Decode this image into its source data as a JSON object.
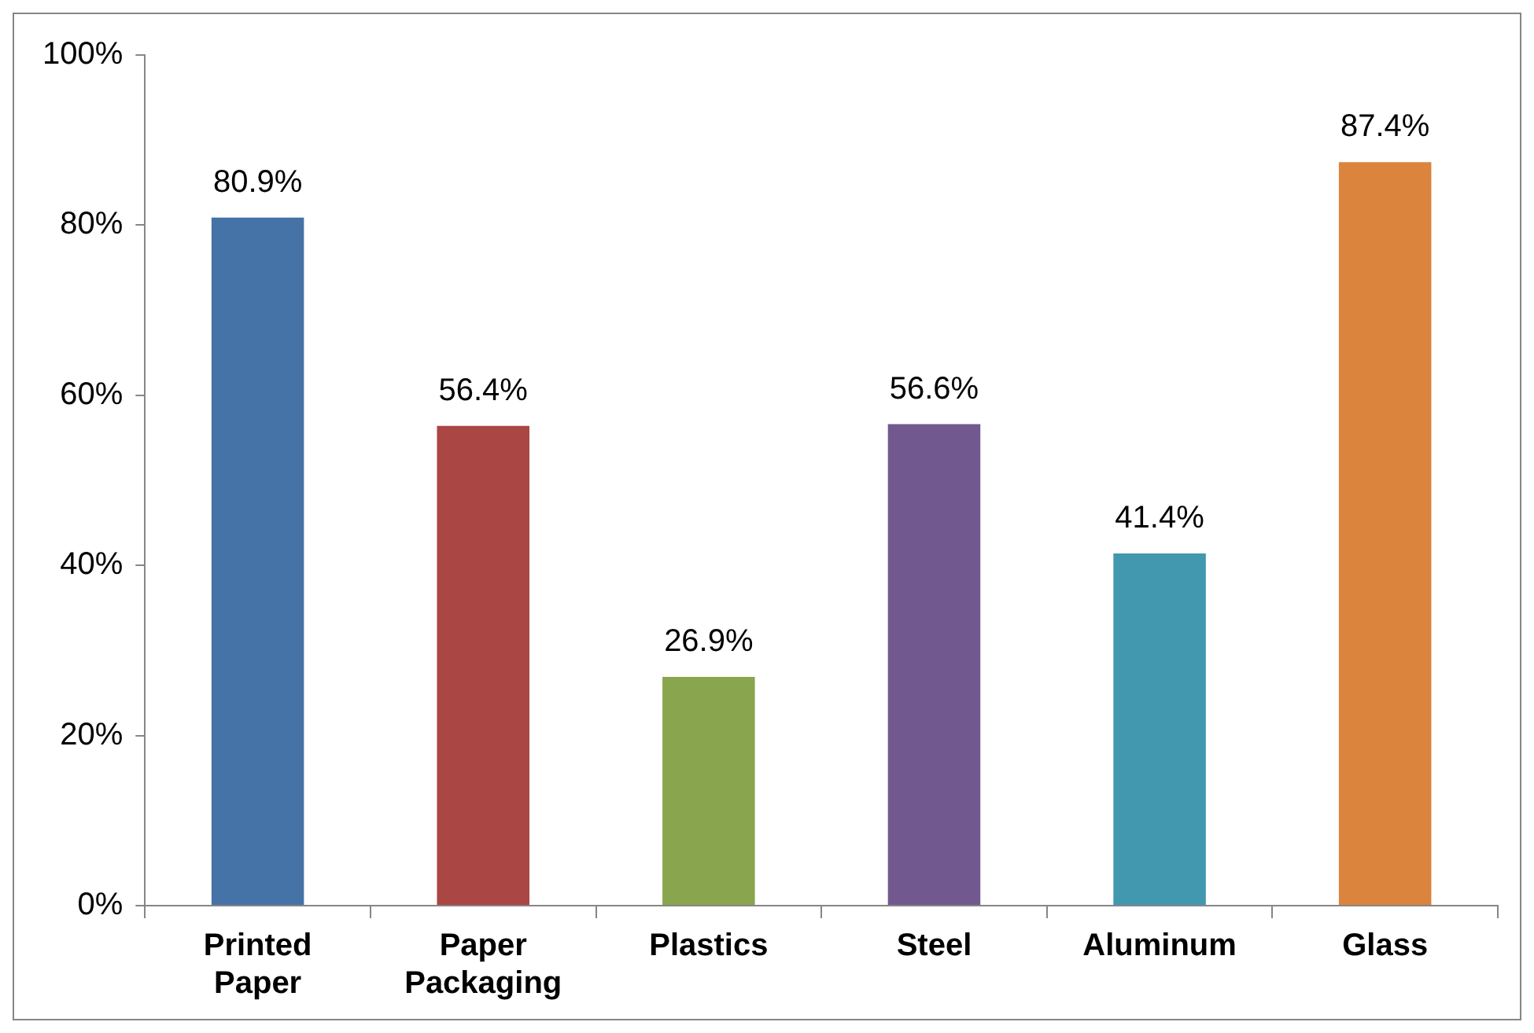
{
  "chart_data": {
    "type": "bar",
    "categories": [
      "Printed Paper",
      "Paper Packaging",
      "Plastics",
      "Steel",
      "Aluminum",
      "Glass"
    ],
    "values": [
      80.9,
      56.4,
      26.9,
      56.6,
      41.4,
      87.4
    ],
    "colors": [
      "#4572a7",
      "#aa4643",
      "#89a54e",
      "#71588f",
      "#4198af",
      "#db843d"
    ],
    "value_labels": [
      "80.9%",
      "56.4%",
      "26.9%",
      "56.6%",
      "41.4%",
      "87.4%"
    ],
    "ylim": [
      0,
      100
    ],
    "yticks": [
      {
        "value": 0,
        "label": "0%"
      },
      {
        "value": 20,
        "label": "20%"
      },
      {
        "value": 40,
        "label": "40%"
      },
      {
        "value": 60,
        "label": "60%"
      },
      {
        "value": 80,
        "label": "80%"
      },
      {
        "value": 100,
        "label": "100%"
      }
    ],
    "grid": false,
    "legend": false
  }
}
